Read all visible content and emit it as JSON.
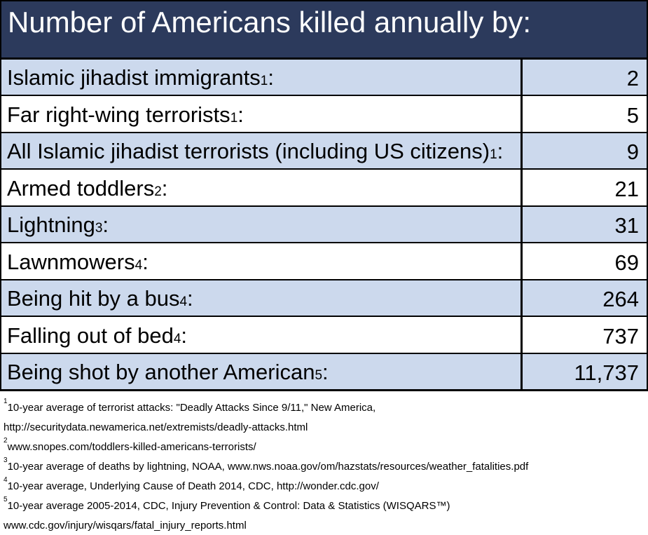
{
  "title": "Number of Americans killed annually by:",
  "colors": {
    "header_bg": "#2c3a5c",
    "header_text": "#ffffff",
    "row_alt_bg": "#ccd9ed",
    "row_bg": "#ffffff",
    "border": "#000000",
    "body_text": "#000000"
  },
  "table": {
    "rows": [
      {
        "label": "Islamic jihadist immigrants",
        "sup": "1",
        "suffix": ":",
        "value": "2"
      },
      {
        "label": "Far right-wing terrorists",
        "sup": "1",
        "suffix": ":",
        "value": "5"
      },
      {
        "label": "All Islamic jihadist terrorists (including US citizens)",
        "sup": "1",
        "suffix": ":",
        "value": "9"
      },
      {
        "label": "Armed toddlers",
        "sup": "2",
        "suffix": ":",
        "value": "21"
      },
      {
        "label": "Lightning",
        "sup": "3",
        "suffix": ":",
        "value": "31"
      },
      {
        "label": "Lawnmowers",
        "sup": "4",
        "suffix": ":",
        "value": "69"
      },
      {
        "label": "Being hit by a bus",
        "sup": "4",
        "suffix": ":",
        "value": "264"
      },
      {
        "label": "Falling out of bed",
        "sup": "4",
        "suffix": ":",
        "value": "737"
      },
      {
        "label": "Being shot by another American",
        "sup": "5",
        "suffix": ":",
        "value": "11,737"
      }
    ]
  },
  "footnotes": [
    {
      "sup": "1",
      "text": "10-year average of terrorist attacks: \"Deadly Attacks Since 9/11,\" New America,"
    },
    {
      "sup": "",
      "text": "http://securitydata.newamerica.net/extremists/deadly-attacks.html"
    },
    {
      "sup": "2",
      "text": "www.snopes.com/toddlers-killed-americans-terrorists/"
    },
    {
      "sup": "3",
      "text": "10-year average of deaths by lightning, NOAA, www.nws.noaa.gov/om/hazstats/resources/weather_fatalities.pdf"
    },
    {
      "sup": "4",
      "text": "10-year average, Underlying Cause of Death 2014, CDC, http://wonder.cdc.gov/"
    },
    {
      "sup": "5",
      "text": "10-year average 2005-2014, CDC, Injury Prevention & Control: Data & Statistics (WISQARS™)"
    },
    {
      "sup": "",
      "text": "www.cdc.gov/injury/wisqars/fatal_injury_reports.html"
    }
  ],
  "chart_data": {
    "type": "table",
    "title": "Number of Americans killed annually by:",
    "categories": [
      "Islamic jihadist immigrants",
      "Far right-wing terrorists",
      "All Islamic jihadist terrorists (including US citizens)",
      "Armed toddlers",
      "Lightning",
      "Lawnmowers",
      "Being hit by a bus",
      "Falling out of bed",
      "Being shot by another American"
    ],
    "values": [
      2,
      5,
      9,
      21,
      31,
      69,
      264,
      737,
      11737
    ],
    "value_labels": [
      "2",
      "5",
      "9",
      "21",
      "31",
      "69",
      "264",
      "737",
      "11,737"
    ],
    "footnote_markers": [
      "1",
      "1",
      "1",
      "2",
      "3",
      "4",
      "4",
      "4",
      "5"
    ],
    "legend_position": "none",
    "grid": false
  }
}
